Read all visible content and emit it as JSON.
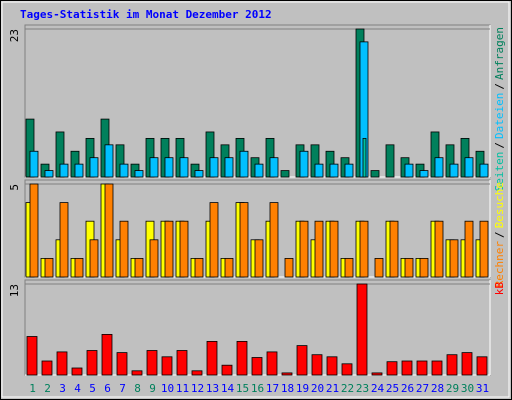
{
  "chart_data": [
    {
      "type": "bar",
      "title": "Tages-Statistik im Monat Dezember 2012",
      "title_color": "#0000ff",
      "ylim": [
        0,
        23
      ],
      "yticks": [
        23
      ],
      "legend_separator": "/",
      "series": [
        {
          "name": "Anfragen",
          "color": "#00805c",
          "values": [
            9,
            2,
            7,
            4,
            6,
            9,
            5,
            2,
            6,
            6,
            6,
            2,
            7,
            5,
            6,
            3,
            6,
            1,
            5,
            5,
            4,
            3,
            23,
            1,
            5,
            3,
            2,
            7,
            5,
            6,
            4
          ]
        },
        {
          "name": "Dateien",
          "color": "#00c0ff",
          "values": [
            4,
            1,
            2,
            2,
            3,
            5,
            2,
            1,
            3,
            3,
            3,
            1,
            3,
            3,
            4,
            2,
            3,
            0,
            4,
            2,
            2,
            2,
            21,
            0,
            0,
            2,
            1,
            3,
            2,
            3,
            2
          ]
        },
        {
          "name": "Seiten",
          "color": "#00c0a0",
          "values": [
            0,
            0,
            0,
            0,
            0,
            0,
            0,
            0,
            0,
            0,
            0,
            0,
            0,
            0,
            0,
            0,
            0,
            0,
            0,
            0,
            0,
            0,
            6,
            0,
            0,
            0,
            0,
            0,
            0,
            0,
            0
          ]
        }
      ]
    },
    {
      "type": "bar",
      "ylim": [
        0,
        5
      ],
      "yticks": [
        5
      ],
      "legend_separator": "/",
      "series": [
        {
          "name": "Besuche",
          "color": "#ffff00",
          "values": [
            4,
            1,
            2,
            1,
            3,
            5,
            2,
            1,
            3,
            3,
            3,
            1,
            3,
            1,
            4,
            2,
            3,
            0,
            3,
            2,
            3,
            1,
            3,
            0,
            3,
            1,
            1,
            3,
            2,
            2,
            2
          ]
        },
        {
          "name": "Rechner",
          "color": "#ff8000",
          "values": [
            5,
            1,
            4,
            1,
            2,
            5,
            3,
            1,
            2,
            3,
            3,
            1,
            4,
            1,
            4,
            2,
            4,
            1,
            3,
            3,
            3,
            1,
            3,
            1,
            3,
            1,
            1,
            3,
            2,
            3,
            3
          ]
        }
      ]
    },
    {
      "type": "bar",
      "ylim": [
        0,
        13
      ],
      "yticks": [
        13
      ],
      "categories": [
        "1",
        "2",
        "3",
        "4",
        "5",
        "6",
        "7",
        "8",
        "9",
        "10",
        "11",
        "12",
        "13",
        "14",
        "15",
        "16",
        "17",
        "18",
        "19",
        "20",
        "21",
        "22",
        "23",
        "24",
        "25",
        "26",
        "27",
        "28",
        "29",
        "30",
        "31"
      ],
      "category_label_colors": [
        "#00805c",
        "#00805c",
        "#0000ff",
        "#0000ff",
        "#0000ff",
        "#0000ff",
        "#0000ff",
        "#00805c",
        "#00805c",
        "#0000ff",
        "#0000ff",
        "#0000ff",
        "#0000ff",
        "#0000ff",
        "#00805c",
        "#00805c",
        "#0000ff",
        "#0000ff",
        "#0000ff",
        "#0000ff",
        "#0000ff",
        "#00805c",
        "#00805c",
        "#0000ff",
        "#0000ff",
        "#0000ff",
        "#0000ff",
        "#0000ff",
        "#00805c",
        "#00805c",
        "#0000ff"
      ],
      "series": [
        {
          "name": "kB",
          "color": "#ff0000",
          "values": [
            5.5,
            2,
            3.3,
            1,
            3.5,
            5.8,
            3.2,
            0.6,
            3.5,
            2.6,
            3.5,
            0.6,
            4.8,
            1.4,
            4.8,
            2.5,
            3.3,
            0.3,
            4.2,
            2.9,
            2.6,
            1.6,
            13,
            0.3,
            1.9,
            2,
            2,
            2,
            2.9,
            3.2,
            2.6
          ]
        }
      ]
    }
  ]
}
